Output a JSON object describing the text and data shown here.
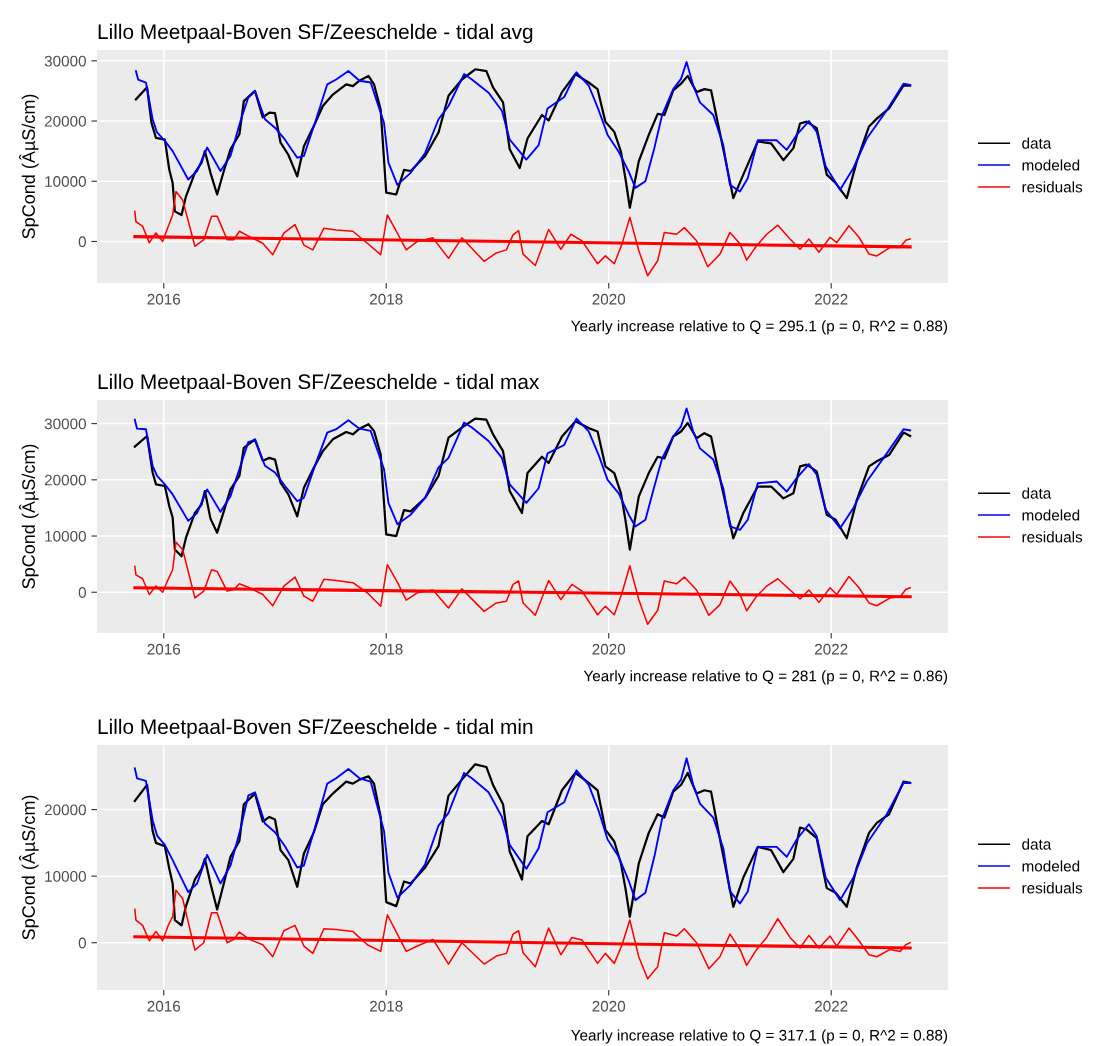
{
  "chart_data": [
    {
      "type": "line",
      "title": "Lillo Meetpaal-Boven SF/Zeeschelde - tidal avg",
      "ylabel": "SpCond (ÂµS/cm)",
      "annotations": [
        "Yearly increase relative to Q = 295.1 (p = 0, R^2 = 0.88)"
      ],
      "xlim": [
        2015.4,
        2023.05
      ],
      "xticks": [
        2016,
        2018,
        2020,
        2022
      ],
      "ylim": [
        -6900,
        31800
      ],
      "yticks": [
        0,
        10000,
        20000,
        30000
      ],
      "grid": true,
      "legend": "right",
      "series": [
        {
          "name": "data",
          "color": "#000000",
          "x": [
            2015.75,
            2015.85,
            2015.89,
            2015.93,
            2016.01,
            2016.05,
            2016.08,
            2016.1,
            2016.16,
            2016.2,
            2016.28,
            2016.34,
            2016.37,
            2016.42,
            2016.48,
            2016.54,
            2016.6,
            2016.68,
            2016.72,
            2016.82,
            2016.89,
            2016.95,
            2017.0,
            2017.05,
            2017.12,
            2017.2,
            2017.26,
            2017.35,
            2017.43,
            2017.52,
            2017.64,
            2017.7,
            2017.76,
            2017.84,
            2017.89,
            2017.95,
            2018.0,
            2018.09,
            2018.16,
            2018.22,
            2018.35,
            2018.47,
            2018.56,
            2018.68,
            2018.8,
            2018.9,
            2018.96,
            2019.05,
            2019.11,
            2019.2,
            2019.27,
            2019.4,
            2019.46,
            2019.58,
            2019.7,
            2019.82,
            2019.9,
            2019.97,
            2020.05,
            2020.11,
            2020.15,
            2020.19,
            2020.27,
            2020.36,
            2020.44,
            2020.5,
            2020.58,
            2020.65,
            2020.71,
            2020.79,
            2020.86,
            2020.92,
            2021.01,
            2021.12,
            2021.21,
            2021.34,
            2021.46,
            2021.57,
            2021.66,
            2021.72,
            2021.78,
            2021.87,
            2021.96,
            2022.04,
            2022.14,
            2022.23,
            2022.34,
            2022.41,
            2022.52,
            2022.65,
            2022.71
          ],
          "values": [
            23600,
            25600,
            19700,
            17200,
            16900,
            11900,
            9700,
            5000,
            4400,
            7500,
            11400,
            13100,
            15000,
            11400,
            7800,
            11700,
            15300,
            17800,
            23300,
            25000,
            20600,
            21400,
            21300,
            16400,
            14400,
            10800,
            15800,
            19200,
            22500,
            24400,
            26100,
            25800,
            26700,
            27500,
            26100,
            21900,
            8100,
            7800,
            11900,
            11700,
            14200,
            18100,
            24200,
            26900,
            28600,
            28300,
            25600,
            23100,
            15300,
            12200,
            17100,
            21000,
            20100,
            24800,
            27800,
            26400,
            25300,
            19900,
            18200,
            14900,
            10500,
            5600,
            13300,
            17700,
            21200,
            21000,
            25100,
            26200,
            27500,
            24800,
            25300,
            25100,
            17100,
            7200,
            11100,
            16600,
            16300,
            13500,
            15500,
            19600,
            19900,
            18800,
            11100,
            9700,
            7200,
            13300,
            19100,
            20400,
            22100,
            25900,
            25900
          ]
        },
        {
          "name": "modeled",
          "color": "#0000ff",
          "x": [
            2015.75,
            2015.77,
            2015.84,
            2015.9,
            2015.94,
            2016.01,
            2016.08,
            2016.22,
            2016.3,
            2016.39,
            2016.51,
            2016.6,
            2016.69,
            2016.76,
            2016.82,
            2016.91,
            2017.0,
            2017.09,
            2017.2,
            2017.26,
            2017.37,
            2017.47,
            2017.55,
            2017.66,
            2017.76,
            2017.86,
            2017.98,
            2018.02,
            2018.1,
            2018.22,
            2018.35,
            2018.47,
            2018.56,
            2018.7,
            2018.77,
            2018.92,
            2019.04,
            2019.11,
            2019.26,
            2019.37,
            2019.45,
            2019.6,
            2019.71,
            2019.82,
            2019.91,
            2019.99,
            2020.09,
            2020.18,
            2020.24,
            2020.33,
            2020.41,
            2020.48,
            2020.58,
            2020.65,
            2020.7,
            2020.76,
            2020.82,
            2020.94,
            2021.03,
            2021.09,
            2021.18,
            2021.25,
            2021.34,
            2021.51,
            2021.6,
            2021.69,
            2021.8,
            2021.87,
            2021.95,
            2022.08,
            2022.2,
            2022.32,
            2022.5,
            2022.65,
            2022.71
          ],
          "values": [
            28300,
            26900,
            26400,
            20300,
            18100,
            16700,
            15000,
            10300,
            11700,
            15600,
            11700,
            14200,
            20000,
            23900,
            25000,
            20300,
            18900,
            16900,
            13900,
            14200,
            20300,
            26100,
            26900,
            28300,
            26700,
            26400,
            19700,
            13100,
            9400,
            11400,
            14700,
            20300,
            22500,
            27800,
            26900,
            24700,
            21700,
            16900,
            13600,
            16000,
            22100,
            24000,
            28100,
            25900,
            21800,
            17700,
            14900,
            11600,
            8900,
            10000,
            15500,
            21000,
            25300,
            27000,
            29800,
            25900,
            23100,
            21000,
            16000,
            9400,
            8300,
            10500,
            16800,
            16800,
            15200,
            17700,
            20000,
            18200,
            12500,
            8600,
            12200,
            17100,
            21800,
            26200,
            26000
          ]
        },
        {
          "name": "residuals",
          "color": "#ff0000",
          "x": [
            2015.74,
            2015.75,
            2015.81,
            2015.87,
            2015.93,
            2015.99,
            2016.04,
            2016.08,
            2016.11,
            2016.17,
            2016.28,
            2016.36,
            2016.43,
            2016.48,
            2016.57,
            2016.63,
            2016.68,
            2016.77,
            2016.89,
            2016.98,
            2017.08,
            2017.18,
            2017.26,
            2017.34,
            2017.44,
            2017.55,
            2017.7,
            2017.83,
            2017.95,
            2018.01,
            2018.1,
            2018.18,
            2018.28,
            2018.42,
            2018.56,
            2018.68,
            2018.88,
            2018.99,
            2019.08,
            2019.14,
            2019.19,
            2019.23,
            2019.34,
            2019.46,
            2019.57,
            2019.66,
            2019.76,
            2019.9,
            2019.97,
            2020.05,
            2020.12,
            2020.19,
            2020.27,
            2020.35,
            2020.44,
            2020.5,
            2020.61,
            2020.68,
            2020.79,
            2020.89,
            2021.0,
            2021.09,
            2021.18,
            2021.24,
            2021.33,
            2021.42,
            2021.52,
            2021.63,
            2021.72,
            2021.8,
            2021.89,
            2021.99,
            2022.05,
            2022.16,
            2022.25,
            2022.34,
            2022.41,
            2022.53,
            2022.62,
            2022.67,
            2022.71
          ],
          "values": [
            5000,
            3300,
            2500,
            -200,
            1400,
            0,
            2500,
            4400,
            8300,
            6900,
            -800,
            300,
            4200,
            4200,
            300,
            300,
            1700,
            800,
            -300,
            -2200,
            1400,
            2800,
            -600,
            -1400,
            2200,
            1900,
            1700,
            -300,
            -2200,
            4400,
            1400,
            -1400,
            0,
            600,
            -2800,
            600,
            -3300,
            -1900,
            -1400,
            1100,
            1800,
            -2100,
            -4000,
            2000,
            -1300,
            1200,
            100,
            -3700,
            -2400,
            -3700,
            -400,
            4000,
            -1500,
            -5700,
            -3200,
            1500,
            1200,
            2300,
            100,
            -4200,
            -2100,
            1500,
            -400,
            -3100,
            -700,
            1200,
            2700,
            400,
            -1300,
            400,
            -1800,
            700,
            -200,
            2600,
            700,
            -2100,
            -2400,
            -1000,
            -1000,
            200,
            400
          ]
        },
        {
          "color": "#ff0000",
          "x": [
            2015.74,
            2022.71
          ],
          "values": [
            800,
            -900
          ]
        }
      ]
    },
    {
      "type": "line",
      "title": "Lillo Meetpaal-Boven SF/Zeeschelde - tidal max",
      "ylabel": "SpCond (ÂµS/cm)",
      "annotations": [
        "Yearly increase relative to Q = 281 (p = 0, R^2 = 0.86)"
      ],
      "xlim": [
        2015.4,
        2023.05
      ],
      "xticks": [
        2016,
        2018,
        2020,
        2022
      ],
      "ylim": [
        -7250,
        34200
      ],
      "yticks": [
        0,
        10000,
        20000,
        30000
      ],
      "grid": true,
      "legend": "right",
      "series": [
        {
          "name": "data",
          "color": "#000000",
          "x": [
            2015.74,
            2015.85,
            2015.9,
            2015.93,
            2016.01,
            2016.05,
            2016.08,
            2016.1,
            2016.16,
            2016.2,
            2016.28,
            2016.34,
            2016.37,
            2016.42,
            2016.48,
            2016.54,
            2016.6,
            2016.68,
            2016.72,
            2016.82,
            2016.89,
            2016.95,
            2017.0,
            2017.05,
            2017.12,
            2017.2,
            2017.26,
            2017.35,
            2017.43,
            2017.52,
            2017.64,
            2017.7,
            2017.76,
            2017.84,
            2017.89,
            2017.95,
            2018.0,
            2018.09,
            2018.16,
            2018.22,
            2018.35,
            2018.47,
            2018.56,
            2018.68,
            2018.8,
            2018.9,
            2018.96,
            2019.05,
            2019.11,
            2019.22,
            2019.27,
            2019.4,
            2019.46,
            2019.58,
            2019.7,
            2019.82,
            2019.9,
            2019.97,
            2020.05,
            2020.11,
            2020.15,
            2020.19,
            2020.27,
            2020.36,
            2020.44,
            2020.5,
            2020.58,
            2020.65,
            2020.71,
            2020.79,
            2020.86,
            2020.92,
            2021.01,
            2021.12,
            2021.21,
            2021.34,
            2021.46,
            2021.57,
            2021.66,
            2021.72,
            2021.78,
            2021.87,
            2021.96,
            2022.04,
            2022.14,
            2022.23,
            2022.34,
            2022.41,
            2022.52,
            2022.65,
            2022.71
          ],
          "values": [
            25900,
            27800,
            21300,
            19200,
            18900,
            15300,
            13300,
            7600,
            6400,
            9700,
            14100,
            15600,
            18000,
            13100,
            10600,
            14400,
            18300,
            20700,
            25700,
            27200,
            23400,
            23900,
            23600,
            19500,
            17400,
            13500,
            18600,
            22200,
            25100,
            27200,
            28500,
            28100,
            29100,
            29900,
            28700,
            24500,
            10300,
            10000,
            14600,
            14400,
            16800,
            20700,
            27500,
            29300,
            30900,
            30700,
            28100,
            25100,
            18000,
            14100,
            21200,
            24100,
            23000,
            27700,
            30400,
            29200,
            28600,
            22400,
            21200,
            17600,
            12900,
            7600,
            17000,
            21200,
            24100,
            23800,
            27700,
            28600,
            30100,
            27400,
            28300,
            27700,
            19400,
            9600,
            14100,
            18800,
            18800,
            16700,
            17600,
            22400,
            22700,
            21500,
            13800,
            12900,
            9600,
            16400,
            22400,
            23300,
            24400,
            28400,
            27800
          ]
        },
        {
          "name": "modeled",
          "color": "#0000ff",
          "x": [
            2015.74,
            2015.76,
            2015.84,
            2015.9,
            2015.94,
            2016.01,
            2016.08,
            2016.22,
            2016.3,
            2016.39,
            2016.51,
            2016.6,
            2016.69,
            2016.76,
            2016.82,
            2016.91,
            2017.0,
            2017.09,
            2017.2,
            2017.26,
            2017.37,
            2017.47,
            2017.55,
            2017.66,
            2017.76,
            2017.86,
            2017.98,
            2018.02,
            2018.1,
            2018.22,
            2018.35,
            2018.47,
            2018.56,
            2018.7,
            2018.77,
            2018.92,
            2019.04,
            2019.11,
            2019.26,
            2019.37,
            2019.45,
            2019.6,
            2019.71,
            2019.82,
            2019.91,
            2019.99,
            2020.09,
            2020.18,
            2020.24,
            2020.33,
            2020.41,
            2020.48,
            2020.58,
            2020.65,
            2020.7,
            2020.76,
            2020.82,
            2020.94,
            2021.03,
            2021.09,
            2021.18,
            2021.25,
            2021.34,
            2021.51,
            2021.6,
            2021.69,
            2021.8,
            2021.87,
            2021.95,
            2022.08,
            2022.2,
            2022.32,
            2022.5,
            2022.65,
            2022.71
          ],
          "values": [
            30700,
            29100,
            29000,
            22500,
            20700,
            19200,
            17400,
            12700,
            14100,
            18300,
            14300,
            17100,
            22500,
            26700,
            27100,
            22500,
            21300,
            18900,
            16200,
            16800,
            23100,
            28400,
            29000,
            30600,
            29100,
            28700,
            21900,
            15900,
            12100,
            13800,
            16800,
            22200,
            23900,
            30200,
            29300,
            26900,
            23900,
            19200,
            15900,
            18500,
            24700,
            26200,
            30900,
            28600,
            24400,
            20000,
            17600,
            13800,
            11700,
            12900,
            18800,
            23800,
            27700,
            29500,
            32700,
            28600,
            25600,
            23600,
            18500,
            11700,
            11100,
            12900,
            19400,
            19700,
            17900,
            20300,
            22800,
            20900,
            14700,
            11400,
            15000,
            19700,
            24700,
            29000,
            28800
          ]
        },
        {
          "name": "residuals",
          "color": "#ff0000",
          "x": [
            2015.74,
            2015.75,
            2015.81,
            2015.87,
            2015.93,
            2015.99,
            2016.04,
            2016.08,
            2016.11,
            2016.17,
            2016.28,
            2016.36,
            2016.43,
            2016.48,
            2016.57,
            2016.63,
            2016.68,
            2016.77,
            2016.89,
            2016.98,
            2017.08,
            2017.18,
            2017.26,
            2017.34,
            2017.44,
            2017.55,
            2017.7,
            2017.83,
            2017.95,
            2018.01,
            2018.1,
            2018.18,
            2018.28,
            2018.42,
            2018.56,
            2018.68,
            2018.88,
            2018.99,
            2019.08,
            2019.14,
            2019.19,
            2019.23,
            2019.34,
            2019.46,
            2019.57,
            2019.67,
            2019.76,
            2019.9,
            2019.97,
            2020.05,
            2020.12,
            2020.19,
            2020.27,
            2020.35,
            2020.44,
            2020.5,
            2020.61,
            2020.68,
            2020.79,
            2020.9,
            2021.0,
            2021.09,
            2021.18,
            2021.24,
            2021.33,
            2021.42,
            2021.52,
            2021.63,
            2021.72,
            2021.8,
            2021.89,
            2021.99,
            2022.05,
            2022.16,
            2022.25,
            2022.34,
            2022.41,
            2022.53,
            2022.62,
            2022.67,
            2022.71
          ],
          "values": [
            4600,
            3100,
            2400,
            -400,
            1100,
            0,
            2300,
            4000,
            8900,
            7600,
            -1000,
            200,
            4000,
            3700,
            200,
            500,
            1500,
            800,
            -400,
            -2400,
            1100,
            2700,
            -700,
            -1600,
            2300,
            2100,
            1700,
            -100,
            -2500,
            4900,
            1800,
            -1400,
            -100,
            400,
            -2800,
            600,
            -3400,
            -1900,
            -1600,
            1400,
            2000,
            -1900,
            -4100,
            2100,
            -1300,
            1400,
            200,
            -4000,
            -2500,
            -4000,
            -100,
            4700,
            -1300,
            -5700,
            -3200,
            2000,
            1500,
            2700,
            400,
            -4100,
            -2200,
            2000,
            -400,
            -3300,
            -700,
            1100,
            2400,
            400,
            -1200,
            400,
            -1800,
            800,
            -400,
            2800,
            800,
            -1900,
            -2400,
            -1000,
            -800,
            500,
            800
          ]
        },
        {
          "color": "#ff0000",
          "x": [
            2015.74,
            2022.71
          ],
          "values": [
            800,
            -800
          ]
        }
      ]
    },
    {
      "type": "line",
      "title": "Lillo Meetpaal-Boven SF/Zeeschelde - tidal min",
      "ylabel": "SpCond (ÂµS/cm)",
      "annotations": [
        "Yearly increase relative to Q = 317.1 (p = 0, R^2 = 0.88)"
      ],
      "xlim": [
        2015.4,
        2023.05
      ],
      "xticks": [
        2016,
        2018,
        2020,
        2022
      ],
      "ylim": [
        -7100,
        29700
      ],
      "yticks": [
        0,
        10000,
        20000
      ],
      "grid": true,
      "legend": "right",
      "series": [
        {
          "name": "data",
          "color": "#000000",
          "x": [
            2015.74,
            2015.85,
            2015.9,
            2015.93,
            2016.01,
            2016.05,
            2016.08,
            2016.1,
            2016.16,
            2016.2,
            2016.28,
            2016.34,
            2016.37,
            2016.42,
            2016.48,
            2016.54,
            2016.6,
            2016.68,
            2016.72,
            2016.82,
            2016.89,
            2016.95,
            2017.0,
            2017.05,
            2017.12,
            2017.2,
            2017.26,
            2017.35,
            2017.43,
            2017.52,
            2017.64,
            2017.7,
            2017.76,
            2017.84,
            2017.89,
            2017.95,
            2018.0,
            2018.09,
            2018.16,
            2018.22,
            2018.35,
            2018.47,
            2018.56,
            2018.68,
            2018.8,
            2018.9,
            2018.96,
            2019.05,
            2019.11,
            2019.22,
            2019.27,
            2019.4,
            2019.46,
            2019.58,
            2019.7,
            2019.82,
            2019.9,
            2019.97,
            2020.05,
            2020.11,
            2020.15,
            2020.19,
            2020.27,
            2020.36,
            2020.44,
            2020.5,
            2020.58,
            2020.65,
            2020.71,
            2020.79,
            2020.86,
            2020.92,
            2021.01,
            2021.12,
            2021.21,
            2021.34,
            2021.46,
            2021.57,
            2021.66,
            2021.72,
            2021.78,
            2021.87,
            2021.96,
            2022.04,
            2022.14,
            2022.23,
            2022.34,
            2022.41,
            2022.52,
            2022.65,
            2022.71
          ],
          "values": [
            21300,
            23700,
            16800,
            15000,
            14500,
            11100,
            8900,
            3400,
            2600,
            5500,
            9500,
            11100,
            12600,
            8900,
            5000,
            8900,
            12900,
            15300,
            20800,
            22400,
            18200,
            18900,
            18500,
            13900,
            12400,
            8400,
            13400,
            16600,
            20800,
            22400,
            24200,
            23900,
            24500,
            25000,
            23900,
            18900,
            6100,
            5500,
            9200,
            8900,
            11300,
            14500,
            22100,
            24500,
            26800,
            26400,
            23700,
            20800,
            13700,
            9500,
            16000,
            18300,
            17800,
            22900,
            25500,
            24000,
            22900,
            17000,
            15200,
            11900,
            8200,
            3900,
            11900,
            16500,
            19300,
            18800,
            22700,
            23700,
            25500,
            22400,
            22900,
            22700,
            14700,
            5400,
            9800,
            14400,
            13900,
            10600,
            12600,
            17300,
            17000,
            15700,
            8200,
            7500,
            5400,
            11300,
            16500,
            18000,
            19300,
            24200,
            24000
          ]
        },
        {
          "name": "modeled",
          "color": "#0000ff",
          "x": [
            2015.74,
            2015.76,
            2015.84,
            2015.9,
            2015.94,
            2016.01,
            2016.08,
            2016.22,
            2016.3,
            2016.39,
            2016.51,
            2016.6,
            2016.69,
            2016.76,
            2016.82,
            2016.91,
            2017.0,
            2017.09,
            2017.2,
            2017.26,
            2017.37,
            2017.47,
            2017.55,
            2017.66,
            2017.76,
            2017.86,
            2017.98,
            2018.02,
            2018.1,
            2018.22,
            2018.35,
            2018.47,
            2018.56,
            2018.7,
            2018.77,
            2018.92,
            2019.04,
            2019.11,
            2019.26,
            2019.37,
            2019.45,
            2019.6,
            2019.71,
            2019.82,
            2019.91,
            2019.99,
            2020.09,
            2020.18,
            2020.24,
            2020.33,
            2020.41,
            2020.48,
            2020.58,
            2020.65,
            2020.7,
            2020.76,
            2020.82,
            2020.94,
            2021.03,
            2021.09,
            2021.18,
            2021.25,
            2021.34,
            2021.51,
            2021.6,
            2021.69,
            2021.8,
            2021.87,
            2021.95,
            2022.08,
            2022.2,
            2022.32,
            2022.5,
            2022.65,
            2022.71
          ],
          "values": [
            26200,
            24700,
            24300,
            18400,
            16100,
            14700,
            12400,
            7600,
            8900,
            13200,
            8900,
            11600,
            17100,
            22100,
            22600,
            17900,
            16600,
            14500,
            11300,
            11600,
            17900,
            23900,
            24700,
            26100,
            24700,
            24200,
            16800,
            10500,
            6800,
            8700,
            11800,
            17600,
            19500,
            25500,
            24700,
            22600,
            18900,
            14700,
            11100,
            14200,
            19600,
            21100,
            25900,
            23700,
            19800,
            15500,
            12900,
            9300,
            6400,
            7500,
            12900,
            18600,
            22900,
            24500,
            27700,
            23700,
            20900,
            18800,
            14200,
            7700,
            5900,
            7700,
            14400,
            14400,
            12900,
            15500,
            17800,
            16000,
            9800,
            6400,
            9800,
            14900,
            19300,
            24000,
            24000
          ]
        },
        {
          "name": "residuals",
          "color": "#ff0000",
          "x": [
            2015.74,
            2015.75,
            2015.81,
            2015.87,
            2015.93,
            2015.99,
            2016.04,
            2016.08,
            2016.11,
            2016.17,
            2016.28,
            2016.36,
            2016.43,
            2016.48,
            2016.57,
            2016.63,
            2016.68,
            2016.77,
            2016.89,
            2016.98,
            2017.08,
            2017.18,
            2017.26,
            2017.34,
            2017.44,
            2017.55,
            2017.7,
            2017.83,
            2017.95,
            2018.01,
            2018.1,
            2018.18,
            2018.28,
            2018.42,
            2018.56,
            2018.68,
            2018.88,
            2018.99,
            2019.08,
            2019.14,
            2019.19,
            2019.23,
            2019.34,
            2019.46,
            2019.57,
            2019.67,
            2019.76,
            2019.9,
            2019.97,
            2020.05,
            2020.12,
            2020.19,
            2020.27,
            2020.35,
            2020.44,
            2020.5,
            2020.61,
            2020.68,
            2020.79,
            2020.9,
            2021.0,
            2021.09,
            2021.18,
            2021.24,
            2021.33,
            2021.42,
            2021.52,
            2021.63,
            2021.72,
            2021.8,
            2021.89,
            2021.99,
            2022.05,
            2022.16,
            2022.25,
            2022.34,
            2022.41,
            2022.53,
            2022.62,
            2022.67,
            2022.71
          ],
          "values": [
            5000,
            3400,
            2600,
            300,
            1700,
            300,
            2600,
            3900,
            7900,
            6600,
            -1100,
            0,
            4500,
            4500,
            0,
            500,
            1600,
            500,
            -300,
            -2100,
            1800,
            2600,
            -500,
            -1600,
            2100,
            2000,
            1700,
            -300,
            -1300,
            4200,
            1300,
            -1300,
            -500,
            500,
            -3200,
            0,
            -3200,
            -2000,
            -1600,
            1300,
            1800,
            -1500,
            -3600,
            2200,
            -1800,
            800,
            400,
            -3100,
            -1600,
            -3100,
            -300,
            3400,
            -2100,
            -5400,
            -3600,
            1500,
            1000,
            2100,
            0,
            -3900,
            -2100,
            1300,
            -1000,
            -3400,
            -1000,
            800,
            3600,
            800,
            -800,
            1100,
            -800,
            1000,
            -500,
            2200,
            300,
            -1800,
            -2100,
            -1000,
            -1300,
            -300,
            0
          ]
        },
        {
          "color": "#ff0000",
          "x": [
            2015.74,
            2022.71
          ],
          "values": [
            900,
            -800
          ]
        }
      ]
    }
  ]
}
